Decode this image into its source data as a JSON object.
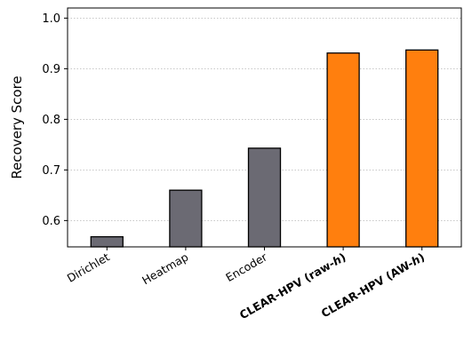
{
  "chart_data": {
    "type": "bar",
    "categories": [
      "Dirichlet",
      "Heatmap",
      "Encoder",
      "CLEAR-HPV (raw-h)",
      "CLEAR-HPV (AW-h)"
    ],
    "category_parts": [
      [
        {
          "text": "Dirichlet"
        }
      ],
      [
        {
          "text": "Heatmap"
        }
      ],
      [
        {
          "text": "Encoder"
        }
      ],
      [
        {
          "text": "CLEAR-HPV (raw-",
          "bold": true
        },
        {
          "text": "h",
          "bold": true,
          "italic": true
        },
        {
          "text": ")",
          "bold": true
        }
      ],
      [
        {
          "text": "CLEAR-HPV (AW-",
          "bold": true
        },
        {
          "text": "h",
          "bold": true,
          "italic": true
        },
        {
          "text": ")",
          "bold": true
        }
      ]
    ],
    "values": [
      0.568,
      0.66,
      0.743,
      0.931,
      0.937
    ],
    "bar_colors": [
      "#6b6a73",
      "#6b6a73",
      "#6b6a73",
      "#ff7f0e",
      "#ff7f0e"
    ],
    "ylabel": "Recovery Score",
    "xlabel": "",
    "ylim": [
      0.548,
      1.02
    ],
    "yticks": [
      0.6,
      0.7,
      0.8,
      0.9,
      1.0
    ],
    "ytick_labels": [
      "0.6",
      "0.7",
      "0.8",
      "0.9",
      "1.0"
    ],
    "grid": "horizontal dotted"
  }
}
